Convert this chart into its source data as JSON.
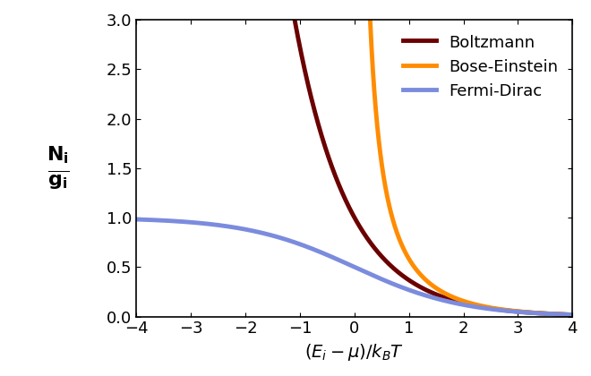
{
  "title": "",
  "ylabel": "N_i / g_i",
  "xlabel": "(E_i-μ)/k_BT",
  "xlim": [
    -4,
    4
  ],
  "ylim": [
    0,
    3
  ],
  "xticks": [
    -4,
    -3,
    -2,
    -1,
    0,
    1,
    2,
    3,
    4
  ],
  "yticks": [
    0,
    0.5,
    1.0,
    1.5,
    2.0,
    2.5,
    3.0
  ],
  "boltzmann_color": "#6B0000",
  "bose_einstein_color": "#FF8C00",
  "fermi_dirac_color": "#7B8CDE",
  "line_width": 3.5,
  "legend_labels": [
    "Boltzmann",
    "Bose-Einstein",
    "Fermi-Dirac"
  ],
  "background_color": "#FFFFFF",
  "font_size": 14,
  "legend_font_size": 13
}
